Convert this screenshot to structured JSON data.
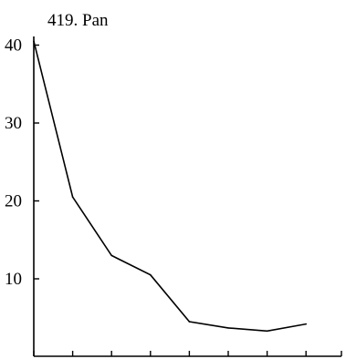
{
  "chart_data": {
    "type": "line",
    "title": "419. Pan",
    "xlabel": "",
    "ylabel": "",
    "x": [
      1,
      2,
      3,
      4,
      5,
      6,
      7,
      8
    ],
    "xlim": [
      1,
      8
    ],
    "ylim": [
      0,
      42
    ],
    "yticks": [
      10,
      20,
      30,
      40
    ],
    "ytick_labels": [
      "10",
      "20",
      "30",
      "40"
    ],
    "x_tick_count": 8,
    "grid": false,
    "legend": "none",
    "series": [
      {
        "values": [
          40.5,
          20.5,
          13.0,
          10.5,
          4.5,
          3.7,
          3.3,
          4.2
        ],
        "color": "#000000"
      }
    ]
  }
}
